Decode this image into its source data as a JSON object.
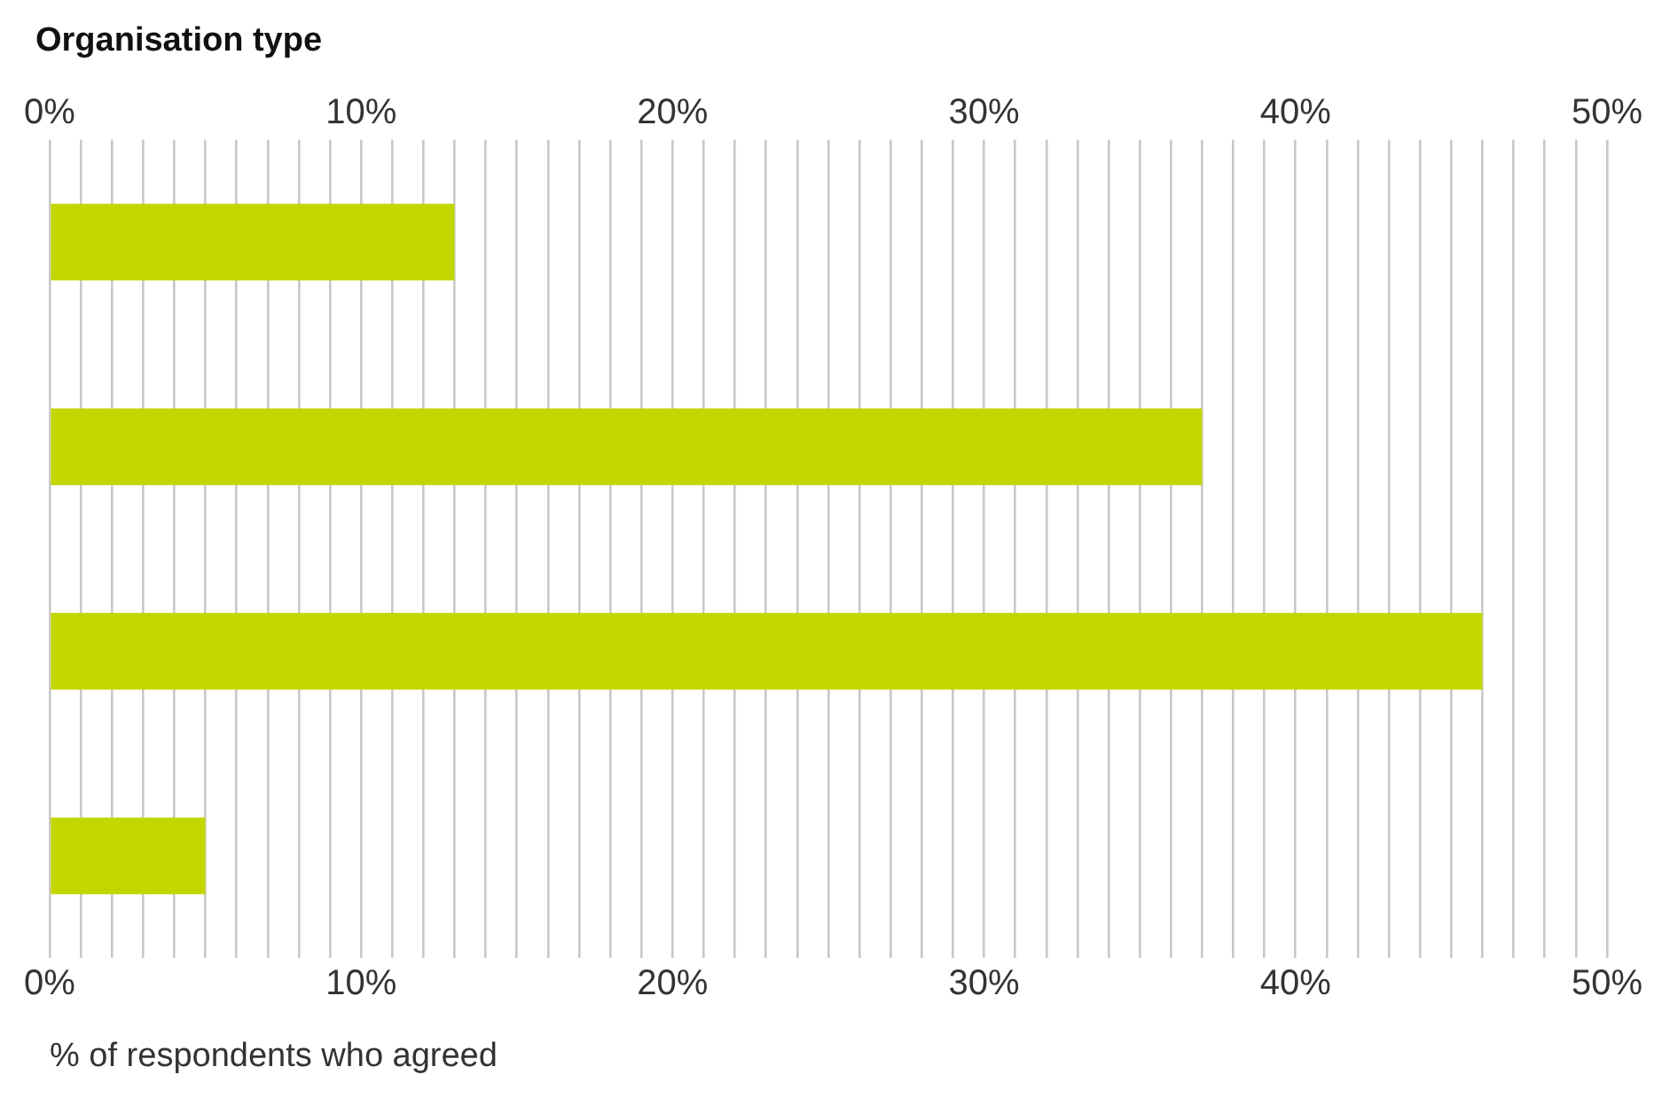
{
  "chart_data": {
    "type": "bar",
    "orientation": "horizontal",
    "title": "Organisation type",
    "xlabel": "% of respondents who agreed",
    "categories": [
      null,
      null,
      null,
      null
    ],
    "values": [
      13,
      37,
      46,
      5
    ],
    "color": "#c3d600",
    "xlim": [
      0,
      50
    ],
    "xticks": [
      {
        "value": 0,
        "label": "0%"
      },
      {
        "value": 1,
        "label": null
      },
      {
        "value": 2,
        "label": null
      },
      {
        "value": 3,
        "label": null
      },
      {
        "value": 4,
        "label": null
      },
      {
        "value": 5,
        "label": null
      },
      {
        "value": 6,
        "label": null
      },
      {
        "value": 7,
        "label": null
      },
      {
        "value": 8,
        "label": null
      },
      {
        "value": 9,
        "label": null
      },
      {
        "value": 10,
        "label": "10%"
      },
      {
        "value": 11,
        "label": null
      },
      {
        "value": 12,
        "label": null
      },
      {
        "value": 13,
        "label": null
      },
      {
        "value": 14,
        "label": null
      },
      {
        "value": 15,
        "label": null
      },
      {
        "value": 16,
        "label": null
      },
      {
        "value": 17,
        "label": null
      },
      {
        "value": 18,
        "label": null
      },
      {
        "value": 19,
        "label": null
      },
      {
        "value": 20,
        "label": "20%"
      },
      {
        "value": 21,
        "label": null
      },
      {
        "value": 22,
        "label": null
      },
      {
        "value": 23,
        "label": null
      },
      {
        "value": 24,
        "label": null
      },
      {
        "value": 25,
        "label": null
      },
      {
        "value": 26,
        "label": null
      },
      {
        "value": 27,
        "label": null
      },
      {
        "value": 28,
        "label": null
      },
      {
        "value": 29,
        "label": null
      },
      {
        "value": 30,
        "label": "30%"
      },
      {
        "value": 31,
        "label": null
      },
      {
        "value": 32,
        "label": null
      },
      {
        "value": 33,
        "label": null
      },
      {
        "value": 34,
        "label": null
      },
      {
        "value": 35,
        "label": null
      },
      {
        "value": 36,
        "label": null
      },
      {
        "value": 37,
        "label": null
      },
      {
        "value": 38,
        "label": null
      },
      {
        "value": 39,
        "label": null
      },
      {
        "value": 40,
        "label": "40%"
      },
      {
        "value": 41,
        "label": null
      },
      {
        "value": 42,
        "label": null
      },
      {
        "value": 43,
        "label": null
      },
      {
        "value": 44,
        "label": null
      },
      {
        "value": 45,
        "label": null
      },
      {
        "value": 46,
        "label": null
      },
      {
        "value": 47,
        "label": null
      },
      {
        "value": 48,
        "label": null
      },
      {
        "value": 49,
        "label": null
      },
      {
        "value": 50,
        "label": "50%"
      }
    ],
    "x2lim": [
      0,
      50
    ],
    "x2ticks": [
      {
        "value": 0,
        "label": "0%"
      },
      {
        "value": 10,
        "label": "10%"
      },
      {
        "value": 20,
        "label": "20%"
      },
      {
        "value": 30,
        "label": "30%"
      },
      {
        "value": 40,
        "label": "40%"
      },
      {
        "value": 50,
        "label": "50%"
      }
    ],
    "grid": "x",
    "legend": false
  }
}
